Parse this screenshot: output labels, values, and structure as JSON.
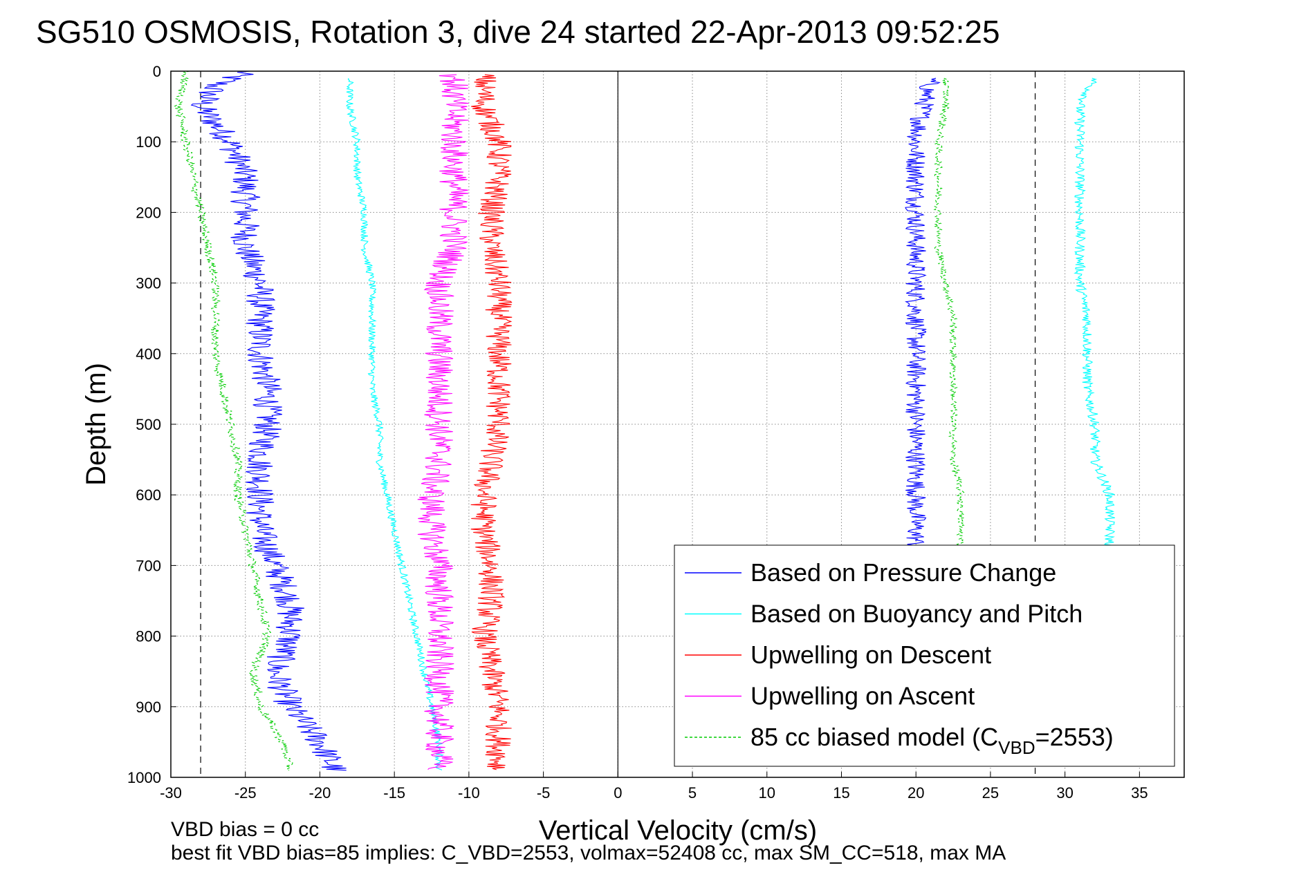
{
  "chart_data": {
    "type": "line",
    "title": "SG510 OSMOSIS, Rotation 3, dive 24 started 22-Apr-2013 09:52:25",
    "xlabel": "Vertical Velocity (cm/s)",
    "ylabel": "Depth (m)",
    "xlim": [
      -30,
      38
    ],
    "ylim": [
      0,
      1000
    ],
    "y_reversed": true,
    "grid": true,
    "x_ticks": [
      -30,
      -25,
      -20,
      -15,
      -10,
      -5,
      0,
      5,
      10,
      15,
      20,
      25,
      30,
      35
    ],
    "y_ticks": [
      0,
      100,
      200,
      300,
      400,
      500,
      600,
      700,
      800,
      900,
      1000
    ],
    "reference_lines": [
      {
        "x": -28,
        "style": "dashed"
      },
      {
        "x": 0,
        "style": "solid"
      },
      {
        "x": 28,
        "style": "dashed"
      }
    ],
    "notes": [
      "VBD bias = 0 cc",
      "best fit VBD bias=85 implies: C_VBD=2553, volmax=52408 cc, max SM_CC=518, max MA"
    ],
    "legend": {
      "placement": "lower-right",
      "entries": [
        {
          "label": "Based on Pressure Change",
          "color": "#0000ff",
          "dash": false
        },
        {
          "label": "Based on Buoyancy and Pitch",
          "color": "#00ffff",
          "dash": false
        },
        {
          "label": "Upwelling on Descent",
          "color": "#ff0000",
          "dash": false
        },
        {
          "label": "Upwelling on Ascent",
          "color": "#ff00ff",
          "dash": false
        },
        {
          "label_main": "85 cc biased model (C",
          "label_sub": "VBD",
          "label_tail": "=2553)",
          "color": "#00cc00",
          "dash": true
        }
      ]
    },
    "series": [
      {
        "name": "Based on Pressure Change",
        "color": "#0000ff",
        "segments": [
          {
            "depth": [
              0,
              20,
              50,
              100,
              150,
              200,
              250,
              300,
              350,
              400,
              450,
              500,
              550,
              600,
              650,
              700,
              750,
              800,
              850,
              900,
              950,
              990
            ],
            "x": [
              -25,
              -27,
              -28,
              -26,
              -25,
              -25,
              -25,
              -24,
              -24,
              -24,
              -23.5,
              -23.5,
              -24,
              -24,
              -24,
              -23,
              -22,
              -22,
              -23,
              -22,
              -20,
              -19
            ],
            "noise": 1.0
          },
          {
            "depth": [
              10,
              50,
              100,
              150,
              200,
              250,
              300,
              350,
              400,
              450,
              500,
              550,
              600,
              650,
              680
            ],
            "x": [
              21,
              20.5,
              20,
              20,
              20,
              20,
              20,
              20,
              20,
              20,
              20,
              20,
              20,
              20,
              20
            ],
            "noise": 0.7
          }
        ]
      },
      {
        "name": "Based on Buoyancy and Pitch",
        "color": "#00ffff",
        "segments": [
          {
            "depth": [
              10,
              50,
              100,
              150,
              200,
              250,
              300,
              350,
              400,
              450,
              500,
              550,
              600,
              650,
              700,
              750,
              800,
              850,
              900,
              950,
              990
            ],
            "x": [
              -18,
              -18,
              -17.5,
              -17.5,
              -17,
              -17,
              -16.5,
              -16.5,
              -16.5,
              -16.5,
              -16,
              -16,
              -15.5,
              -15,
              -14.5,
              -14,
              -13.5,
              -13,
              -12.5,
              -12,
              -12
            ],
            "noise": 0.25
          },
          {
            "depth": [
              10,
              50,
              100,
              150,
              200,
              250,
              300,
              350,
              400,
              450,
              500,
              550,
              600,
              650,
              680
            ],
            "x": [
              32,
              31,
              31,
              31,
              31,
              31,
              31,
              31.5,
              31.5,
              31.5,
              32,
              32,
              33,
              33,
              33
            ],
            "noise": 0.35
          }
        ]
      },
      {
        "name": "Upwelling on Descent",
        "color": "#ff0000",
        "segments": [
          {
            "depth": [
              5,
              50,
              100,
              150,
              200,
              250,
              300,
              350,
              400,
              450,
              500,
              550,
              600,
              650,
              700,
              750,
              800,
              850,
              900,
              950,
              990
            ],
            "x": [
              -9,
              -9,
              -8,
              -8,
              -8.5,
              -8.5,
              -8,
              -8,
              -8,
              -8,
              -8,
              -8.5,
              -9,
              -9,
              -8.5,
              -8.5,
              -9,
              -8.5,
              -8,
              -8,
              -8
            ],
            "noise": 0.9
          }
        ]
      },
      {
        "name": "Upwelling on Ascent",
        "color": "#ff00ff",
        "segments": [
          {
            "depth": [
              5,
              50,
              100,
              150,
              200,
              250,
              300,
              350,
              400,
              450,
              500,
              550,
              600,
              650,
              700,
              750,
              800,
              850,
              900,
              950,
              990
            ],
            "x": [
              -11,
              -11,
              -11,
              -11,
              -11,
              -11,
              -12,
              -12,
              -12,
              -12,
              -12,
              -12,
              -12.5,
              -12.5,
              -12,
              -12,
              -12,
              -12,
              -12,
              -12,
              -12
            ],
            "noise": 1.0
          }
        ]
      },
      {
        "name": "85 cc biased model",
        "color": "#00cc00",
        "dashed": true,
        "segments": [
          {
            "depth": [
              0,
              50,
              100,
              150,
              200,
              250,
              300,
              350,
              400,
              450,
              500,
              550,
              600,
              650,
              700,
              750,
              800,
              850,
              900,
              950,
              990
            ],
            "x": [
              -29,
              -29.5,
              -29,
              -28.5,
              -28,
              -27.5,
              -27,
              -27,
              -27,
              -26.5,
              -26,
              -25.5,
              -25.5,
              -25,
              -24.5,
              -24,
              -23.5,
              -24.5,
              -24,
              -22.5,
              -22
            ],
            "noise": 0.3
          },
          {
            "depth": [
              10,
              50,
              100,
              150,
              200,
              250,
              300,
              350,
              400,
              450,
              500,
              550,
              600,
              650,
              680
            ],
            "x": [
              22,
              22,
              21.5,
              21.5,
              21.5,
              21.5,
              22,
              22.5,
              22.5,
              22.5,
              22.5,
              22.5,
              23,
              23,
              23
            ],
            "noise": 0.25
          }
        ]
      }
    ]
  }
}
